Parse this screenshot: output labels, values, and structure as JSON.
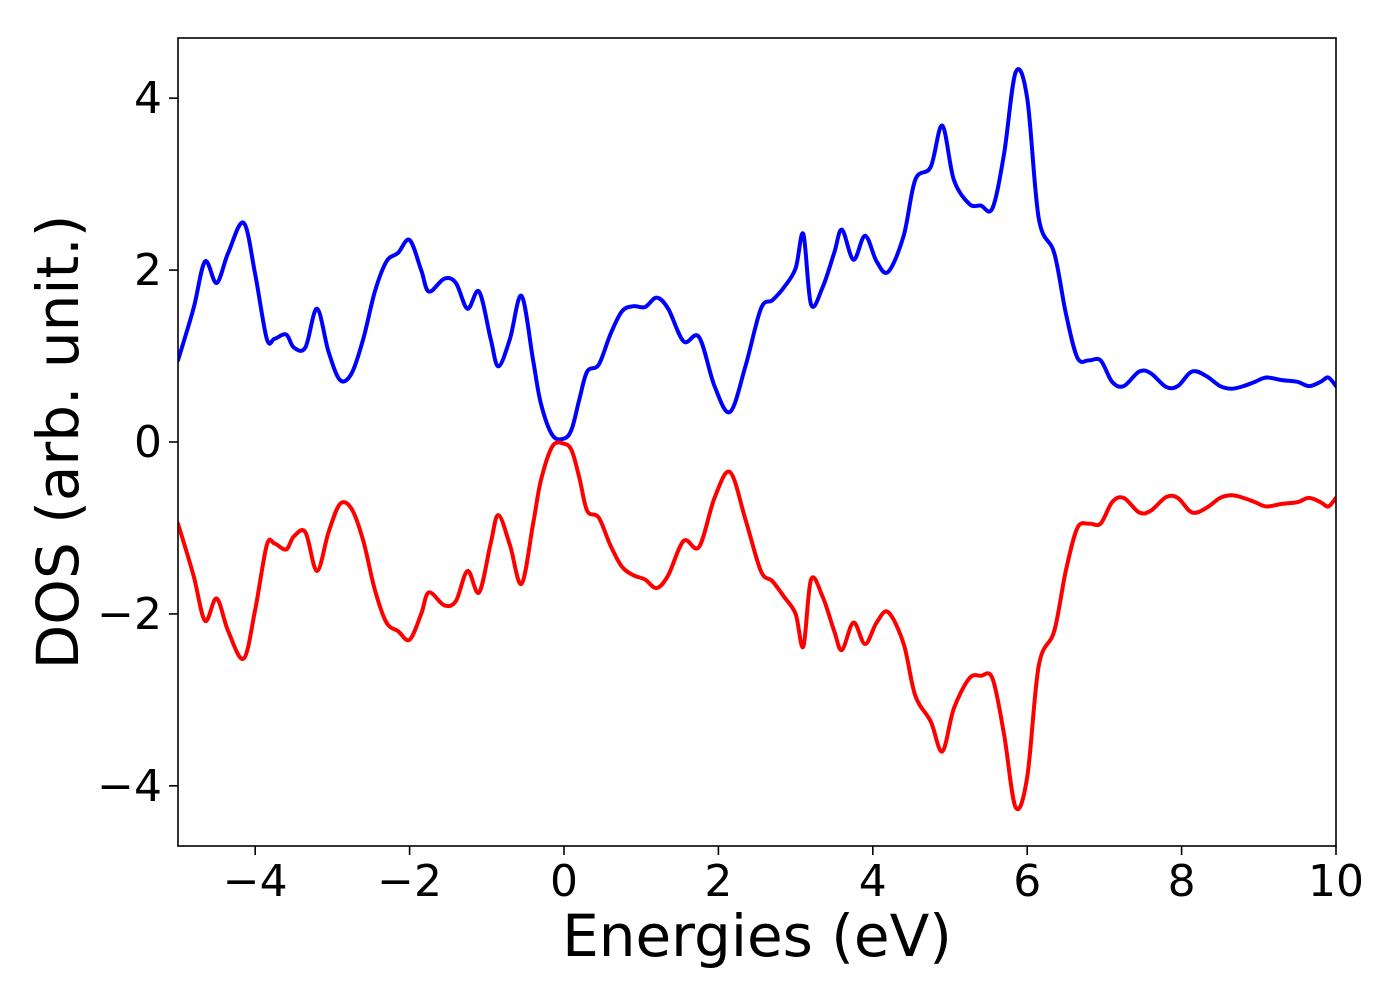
{
  "chart_data": {
    "type": "line",
    "title": "",
    "xlabel": "Energies (eV)",
    "ylabel": "DOS (arb. unit.)",
    "xlim": [
      -5,
      10
    ],
    "ylim": [
      -4.7,
      4.7
    ],
    "xticks": [
      -4,
      -2,
      0,
      2,
      4,
      6,
      8,
      10
    ],
    "xtick_labels": [
      "−4",
      "−2",
      "0",
      "2",
      "4",
      "6",
      "8",
      "10"
    ],
    "yticks": [
      -4,
      -2,
      0,
      2,
      4
    ],
    "ytick_labels": [
      "−4",
      "−2",
      "0",
      "2",
      "4"
    ],
    "grid": false,
    "legend": "none",
    "series": [
      {
        "color": "#0000ff",
        "x": [
          -5.0,
          -4.8,
          -4.65,
          -4.5,
          -4.35,
          -4.15,
          -4.0,
          -3.85,
          -3.75,
          -3.6,
          -3.5,
          -3.35,
          -3.2,
          -3.05,
          -2.9,
          -2.75,
          -2.6,
          -2.45,
          -2.3,
          -2.15,
          -2.0,
          -1.85,
          -1.75,
          -1.55,
          -1.4,
          -1.25,
          -1.1,
          -0.95,
          -0.85,
          -0.7,
          -0.55,
          -0.4,
          -0.3,
          -0.15,
          0.0,
          0.1,
          0.2,
          0.3,
          0.45,
          0.6,
          0.75,
          0.9,
          1.05,
          1.2,
          1.35,
          1.55,
          1.75,
          1.95,
          2.15,
          2.35,
          2.55,
          2.7,
          2.85,
          3.0,
          3.1,
          3.2,
          3.35,
          3.5,
          3.6,
          3.75,
          3.9,
          4.05,
          4.2,
          4.4,
          4.55,
          4.75,
          4.9,
          5.05,
          5.25,
          5.4,
          5.55,
          5.7,
          5.85,
          6.0,
          6.15,
          6.35,
          6.5,
          6.65,
          6.8,
          6.95,
          7.1,
          7.25,
          7.45,
          7.6,
          7.8,
          7.95,
          8.1,
          8.2,
          8.35,
          8.5,
          8.65,
          8.8,
          8.95,
          9.1,
          9.3,
          9.5,
          9.65,
          9.8,
          9.9,
          10.0
        ],
        "y": [
          0.95,
          1.55,
          2.1,
          1.85,
          2.2,
          2.55,
          1.95,
          1.2,
          1.2,
          1.25,
          1.1,
          1.1,
          1.55,
          1.05,
          0.72,
          0.8,
          1.2,
          1.75,
          2.1,
          2.2,
          2.35,
          2.0,
          1.75,
          1.9,
          1.85,
          1.55,
          1.75,
          1.2,
          0.88,
          1.2,
          1.7,
          0.95,
          0.45,
          0.08,
          0.04,
          0.15,
          0.5,
          0.82,
          0.9,
          1.25,
          1.52,
          1.58,
          1.57,
          1.68,
          1.55,
          1.17,
          1.22,
          0.65,
          0.35,
          0.88,
          1.55,
          1.65,
          1.8,
          2.02,
          2.42,
          1.6,
          1.8,
          2.2,
          2.47,
          2.12,
          2.4,
          2.1,
          1.98,
          2.4,
          3.05,
          3.2,
          3.68,
          3.05,
          2.77,
          2.75,
          2.72,
          3.35,
          4.3,
          4.0,
          2.6,
          2.2,
          1.5,
          0.98,
          0.95,
          0.95,
          0.7,
          0.65,
          0.82,
          0.8,
          0.64,
          0.65,
          0.8,
          0.82,
          0.75,
          0.65,
          0.62,
          0.65,
          0.7,
          0.75,
          0.72,
          0.7,
          0.65,
          0.7,
          0.75,
          0.65
        ]
      },
      {
        "color": "#ff0000",
        "x": [
          -5.0,
          -4.8,
          -4.65,
          -4.5,
          -4.35,
          -4.15,
          -4.0,
          -3.85,
          -3.75,
          -3.6,
          -3.5,
          -3.35,
          -3.2,
          -3.05,
          -2.9,
          -2.75,
          -2.6,
          -2.45,
          -2.3,
          -2.15,
          -2.0,
          -1.85,
          -1.75,
          -1.55,
          -1.4,
          -1.25,
          -1.1,
          -0.95,
          -0.85,
          -0.7,
          -0.55,
          -0.4,
          -0.3,
          -0.15,
          0.0,
          0.1,
          0.2,
          0.3,
          0.45,
          0.6,
          0.75,
          0.9,
          1.05,
          1.2,
          1.35,
          1.55,
          1.75,
          1.95,
          2.15,
          2.35,
          2.55,
          2.7,
          2.85,
          3.0,
          3.1,
          3.2,
          3.35,
          3.5,
          3.6,
          3.75,
          3.9,
          4.05,
          4.2,
          4.4,
          4.55,
          4.75,
          4.9,
          5.05,
          5.25,
          5.4,
          5.55,
          5.7,
          5.85,
          6.0,
          6.15,
          6.35,
          6.5,
          6.65,
          6.8,
          6.95,
          7.1,
          7.25,
          7.45,
          7.6,
          7.8,
          7.95,
          8.1,
          8.2,
          8.35,
          8.5,
          8.65,
          8.8,
          8.95,
          9.1,
          9.3,
          9.5,
          9.65,
          9.8,
          9.9,
          10.0
        ],
        "y": [
          -0.95,
          -1.55,
          -2.08,
          -1.82,
          -2.2,
          -2.52,
          -1.95,
          -1.2,
          -1.18,
          -1.25,
          -1.1,
          -1.05,
          -1.5,
          -1.05,
          -0.72,
          -0.78,
          -1.15,
          -1.72,
          -2.1,
          -2.2,
          -2.3,
          -2.0,
          -1.75,
          -1.9,
          -1.85,
          -1.5,
          -1.75,
          -1.18,
          -0.85,
          -1.2,
          -1.65,
          -0.95,
          -0.45,
          -0.05,
          -0.02,
          -0.1,
          -0.42,
          -0.8,
          -0.88,
          -1.2,
          -1.45,
          -1.55,
          -1.6,
          -1.7,
          -1.55,
          -1.15,
          -1.22,
          -0.65,
          -0.35,
          -0.9,
          -1.5,
          -1.62,
          -1.8,
          -2.0,
          -2.38,
          -1.6,
          -1.8,
          -2.2,
          -2.42,
          -2.1,
          -2.35,
          -2.1,
          -1.98,
          -2.35,
          -2.95,
          -3.25,
          -3.6,
          -3.1,
          -2.75,
          -2.72,
          -2.75,
          -3.4,
          -4.25,
          -3.9,
          -2.6,
          -2.2,
          -1.5,
          -1.0,
          -0.95,
          -0.95,
          -0.7,
          -0.65,
          -0.82,
          -0.8,
          -0.64,
          -0.65,
          -0.8,
          -0.82,
          -0.75,
          -0.65,
          -0.62,
          -0.65,
          -0.7,
          -0.75,
          -0.72,
          -0.7,
          -0.65,
          -0.7,
          -0.75,
          -0.65
        ]
      }
    ]
  }
}
